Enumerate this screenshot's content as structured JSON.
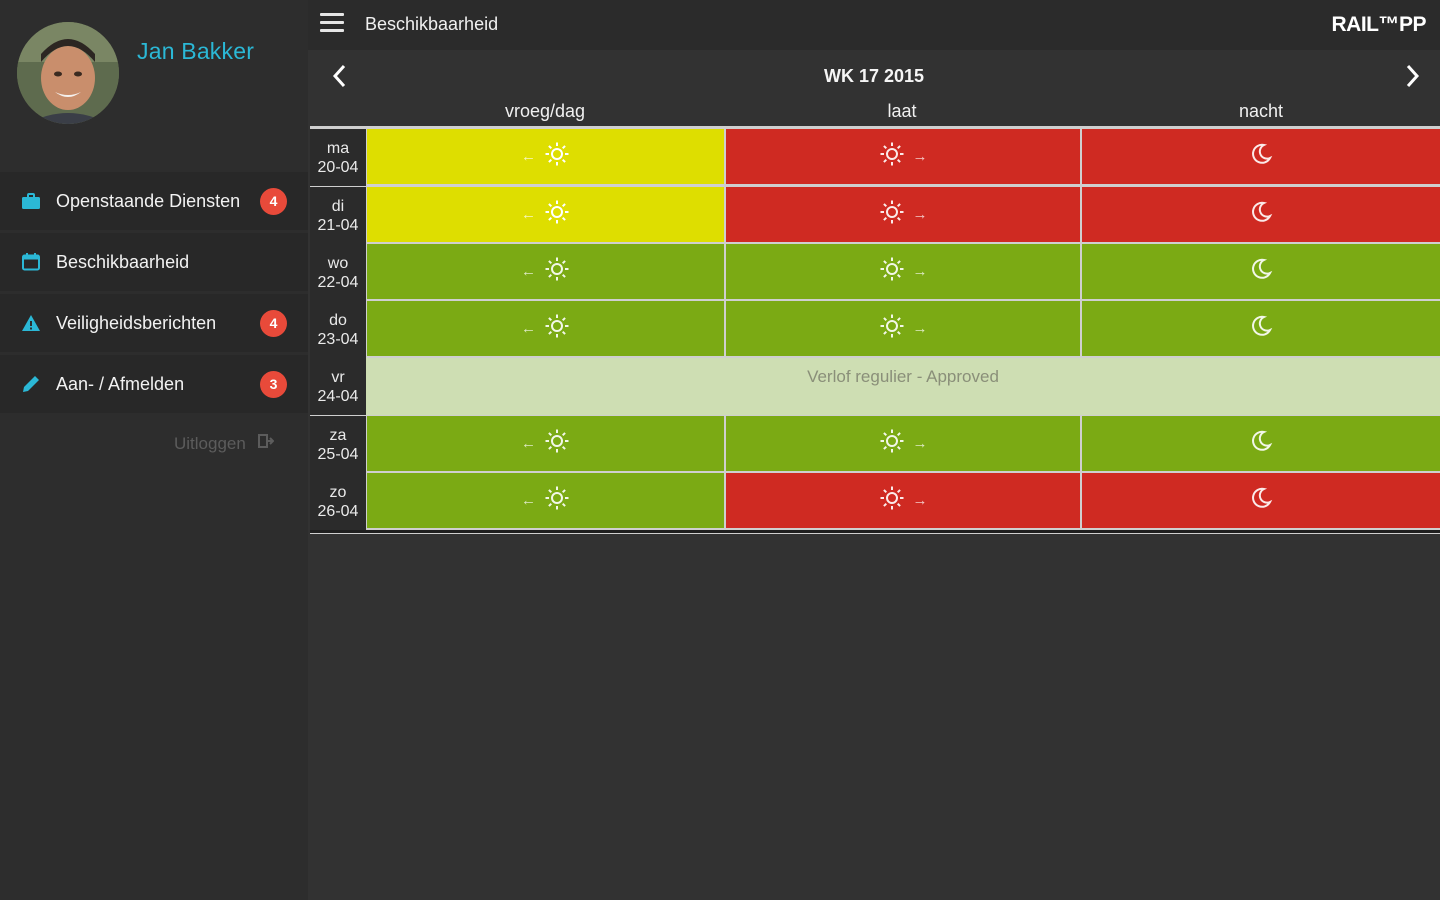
{
  "sidebar": {
    "user_name": "Jan Bakker",
    "items": [
      {
        "label": "Openstaande Diensten",
        "badge": "4",
        "icon": "briefcase-icon"
      },
      {
        "label": "Beschikbaarheid",
        "badge": "",
        "icon": "calendar-icon"
      },
      {
        "label": "Veiligheidsberichten",
        "badge": "4",
        "icon": "warning-icon"
      },
      {
        "label": "Aan- / Afmelden",
        "badge": "3",
        "icon": "pencil-icon"
      }
    ],
    "logout_label": "Uitloggen"
  },
  "topbar": {
    "title": "Beschikbaarheid",
    "brand": "RAIL™PP"
  },
  "week": {
    "label": "WK 17 2015",
    "columns": [
      "vroeg/dag",
      "laat",
      "nacht"
    ]
  },
  "colors": {
    "yellow": "#dede00",
    "red": "#cf2a22",
    "green": "#7baa14",
    "leave": "#cedeb3",
    "accent": "#2bb8d6",
    "badge": "#e84a3a"
  },
  "days": [
    {
      "day": "ma",
      "date": "20-04",
      "early": "yellow",
      "late": "red",
      "night": "red"
    },
    {
      "day": "di",
      "date": "21-04",
      "early": "yellow",
      "late": "red",
      "night": "red"
    },
    {
      "day": "wo",
      "date": "22-04",
      "early": "green",
      "late": "green",
      "night": "green"
    },
    {
      "day": "do",
      "date": "23-04",
      "early": "green",
      "late": "green",
      "night": "green"
    },
    {
      "day": "vr",
      "date": "24-04",
      "leave": "Verlof regulier - Approved"
    },
    {
      "day": "za",
      "date": "25-04",
      "early": "green",
      "late": "green",
      "night": "green"
    },
    {
      "day": "zo",
      "date": "26-04",
      "early": "green",
      "late": "red",
      "night": "red"
    }
  ]
}
